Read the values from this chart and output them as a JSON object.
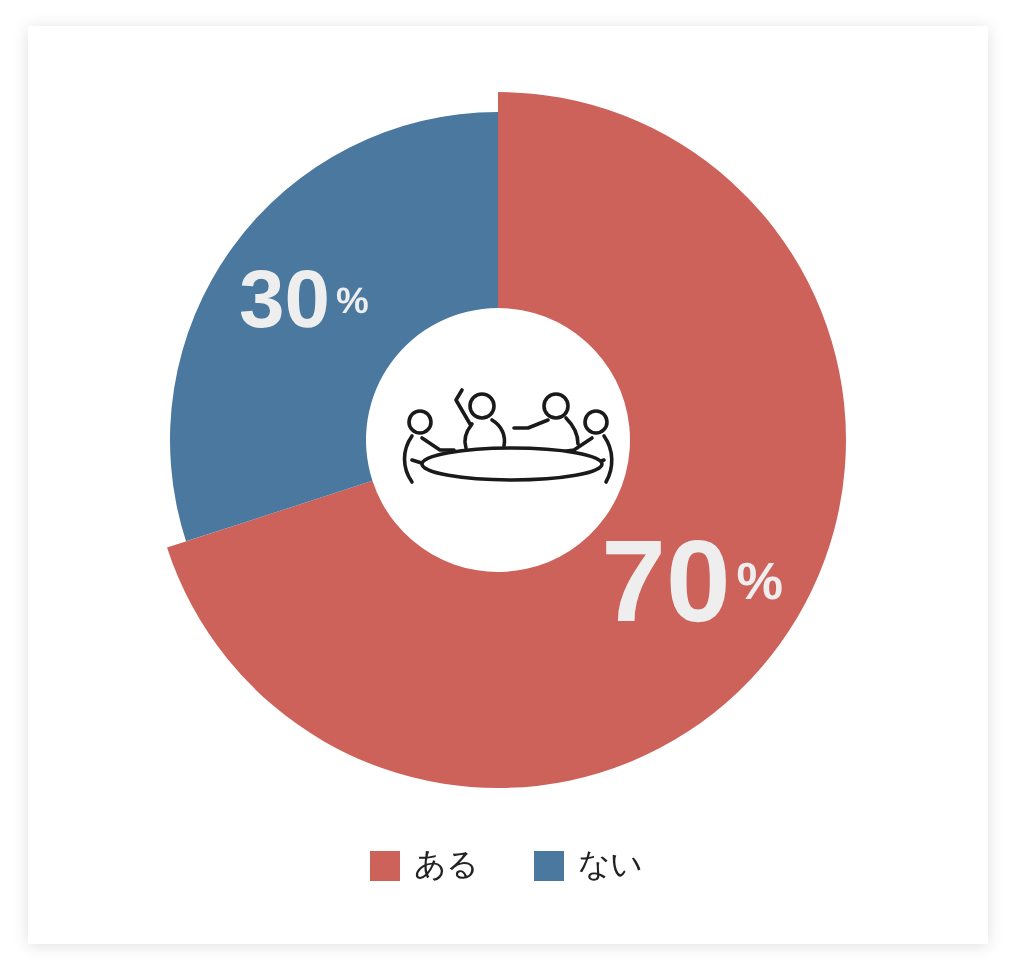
{
  "chart_data": {
    "type": "donut",
    "categories": [
      "ある",
      "ない"
    ],
    "values": [
      70,
      30
    ],
    "colors": [
      "#cd625a",
      "#4a789e"
    ],
    "value_labels": [
      "70%",
      "30%"
    ],
    "legend": "bottom"
  }
}
